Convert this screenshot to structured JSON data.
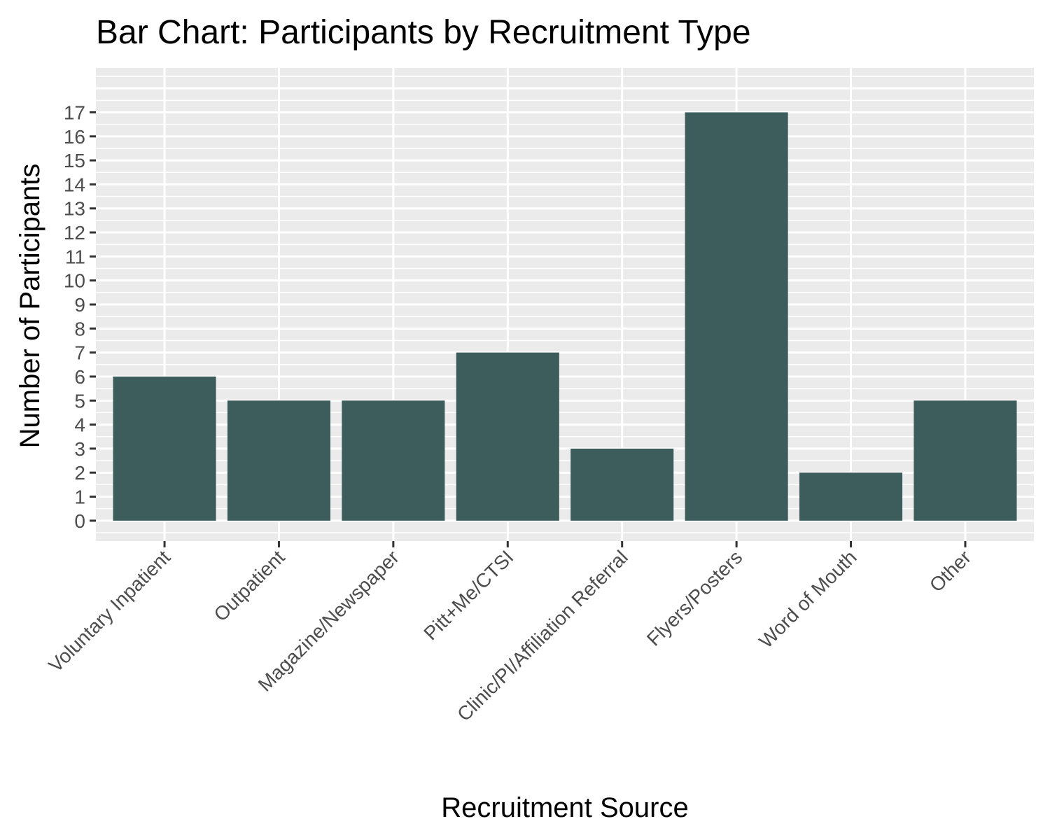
{
  "chart_data": {
    "type": "bar",
    "title": "Bar Chart: Participants by Recruitment Type",
    "xlabel": "Recruitment Source",
    "ylabel": "Number of Participants",
    "categories": [
      "Voluntary Inpatient",
      "Outpatient",
      "Magazine/Newspaper",
      "Pitt+Me/CTSI",
      "Clinic/PI/Affiliation Referral",
      "Flyers/Posters",
      "Word of Mouth",
      "Other"
    ],
    "values": [
      6,
      5,
      5,
      7,
      3,
      17,
      2,
      5
    ],
    "yticks": [
      "0",
      "1",
      "2",
      "3",
      "4",
      "5",
      "6",
      "7",
      "8",
      "9",
      "10",
      "11",
      "12",
      "13",
      "14",
      "15",
      "16",
      "17"
    ],
    "ylim": [
      -0.85,
      18.85
    ],
    "grid": true,
    "legend": "none",
    "colors": {
      "bar": "#3d5c5c",
      "panel_background": "#ebebeb",
      "grid": "#ffffff",
      "tick": "#333333",
      "tick_label": "#4d4d4d",
      "text": "#000000"
    }
  }
}
